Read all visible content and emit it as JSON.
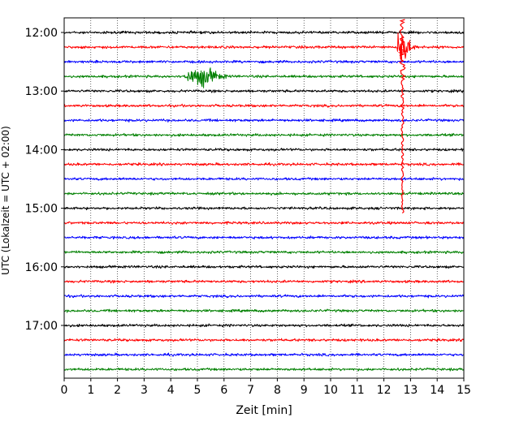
{
  "chart_data": {
    "type": "line",
    "subtype": "helicorder",
    "xlabel": "Zeit  [min]",
    "ylabel": "UTC (Lokalzeit = UTC + 02:00)",
    "xlim": [
      0,
      15
    ],
    "x_ticks": [
      "0",
      "1",
      "2",
      "3",
      "4",
      "5",
      "6",
      "7",
      "8",
      "9",
      "10",
      "11",
      "12",
      "13",
      "14",
      "15"
    ],
    "y_tick_labels": [
      "12:00",
      "13:00",
      "14:00",
      "15:00",
      "16:00",
      "17:00"
    ],
    "grid": "vertical dotted at each minute",
    "trace_colors": [
      "#000000",
      "#ff0000",
      "#0000ff",
      "#008000"
    ],
    "traces": [
      {
        "start": "12:00",
        "color": "#000000"
      },
      {
        "start": "12:15",
        "color": "#ff0000"
      },
      {
        "start": "12:30",
        "color": "#0000ff"
      },
      {
        "start": "12:45",
        "color": "#008000"
      },
      {
        "start": "13:00",
        "color": "#000000"
      },
      {
        "start": "13:15",
        "color": "#ff0000"
      },
      {
        "start": "13:30",
        "color": "#0000ff"
      },
      {
        "start": "13:45",
        "color": "#008000"
      },
      {
        "start": "14:00",
        "color": "#000000"
      },
      {
        "start": "14:15",
        "color": "#ff0000"
      },
      {
        "start": "14:30",
        "color": "#0000ff"
      },
      {
        "start": "14:45",
        "color": "#008000"
      },
      {
        "start": "15:00",
        "color": "#000000"
      },
      {
        "start": "15:15",
        "color": "#ff0000"
      },
      {
        "start": "15:30",
        "color": "#0000ff"
      },
      {
        "start": "15:45",
        "color": "#008000"
      },
      {
        "start": "16:00",
        "color": "#000000"
      },
      {
        "start": "16:15",
        "color": "#ff0000"
      },
      {
        "start": "16:30",
        "color": "#0000ff"
      },
      {
        "start": "16:45",
        "color": "#008000"
      },
      {
        "start": "17:00",
        "color": "#000000"
      },
      {
        "start": "17:15",
        "color": "#ff0000"
      },
      {
        "start": "17:30",
        "color": "#0000ff"
      },
      {
        "start": "17:45",
        "color": "#008000"
      }
    ],
    "events": [
      {
        "trace": "12:45",
        "start_min": 4.5,
        "end_min": 6.8,
        "peak_min": 5.3,
        "color": "#008000",
        "amplitude": "large"
      },
      {
        "trace": "12:15",
        "start_min": 12.5,
        "end_min": 13.6,
        "peak_min": 12.7,
        "color": "#ff0000",
        "amplitude": "very large (clipped, spans into following traces)"
      }
    ]
  }
}
